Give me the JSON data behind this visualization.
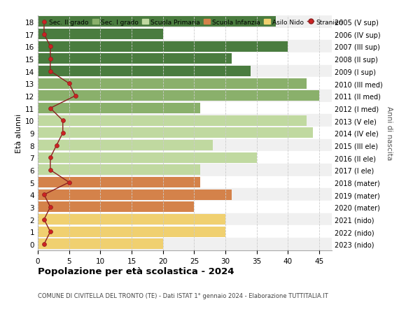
{
  "ages": [
    18,
    17,
    16,
    15,
    14,
    13,
    12,
    11,
    10,
    9,
    8,
    7,
    6,
    5,
    4,
    3,
    2,
    1,
    0
  ],
  "labels_right": [
    "2005 (V sup)",
    "2006 (IV sup)",
    "2007 (III sup)",
    "2008 (II sup)",
    "2009 (I sup)",
    "2010 (III med)",
    "2011 (II med)",
    "2012 (I med)",
    "2013 (V ele)",
    "2014 (IV ele)",
    "2015 (III ele)",
    "2016 (II ele)",
    "2017 (I ele)",
    "2018 (mater)",
    "2019 (mater)",
    "2020 (mater)",
    "2021 (nido)",
    "2022 (nido)",
    "2023 (nido)"
  ],
  "bar_values": [
    38,
    20,
    40,
    31,
    34,
    43,
    45,
    26,
    43,
    44,
    28,
    35,
    26,
    26,
    31,
    25,
    30,
    30,
    20
  ],
  "bar_colors": [
    "#4a7c3f",
    "#4a7c3f",
    "#4a7c3f",
    "#4a7c3f",
    "#4a7c3f",
    "#8ab06b",
    "#8ab06b",
    "#8ab06b",
    "#c0d9a0",
    "#c0d9a0",
    "#c0d9a0",
    "#c0d9a0",
    "#c0d9a0",
    "#d4824a",
    "#d4824a",
    "#d4824a",
    "#f0d070",
    "#f0d070",
    "#f0d070"
  ],
  "stranieri_values": [
    1,
    1,
    2,
    2,
    2,
    5,
    6,
    2,
    4,
    4,
    3,
    2,
    2,
    5,
    1,
    2,
    1,
    2,
    1
  ],
  "legend_labels": [
    "Sec. II grado",
    "Sec. I grado",
    "Scuola Primaria",
    "Scuola Infanzia",
    "Asilo Nido",
    "Stranieri"
  ],
  "legend_colors": [
    "#4a7c3f",
    "#8ab06b",
    "#c0d9a0",
    "#d4824a",
    "#f0d070",
    "#c0392b"
  ],
  "ylabel": "Età alunni",
  "ylabel_right": "Anni di nascita",
  "title": "Popolazione per età scolastica - 2024",
  "subtitle": "COMUNE DI CIVITELLA DEL TRONTO (TE) - Dati ISTAT 1° gennaio 2024 - Elaborazione TUTTITALIA.IT",
  "xlim": [
    0,
    47
  ],
  "xticks": [
    0,
    5,
    10,
    15,
    20,
    25,
    30,
    35,
    40,
    45
  ],
  "bg_color": "#ffffff",
  "stranieri_line_color": "#8b2020",
  "stranieri_dot_color": "#cc2222",
  "row_bg_even": "#f0f0f0",
  "row_bg_odd": "#ffffff"
}
